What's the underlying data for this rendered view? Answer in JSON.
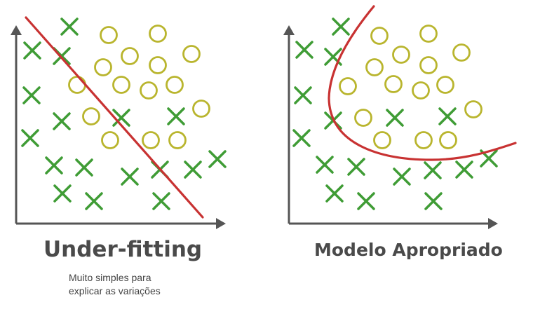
{
  "panels": [
    {
      "title": "Under-fitting",
      "subtitle_lines": [
        "Muito simples para",
        "explicar as variações"
      ]
    },
    {
      "title": "Modelo Apropriado"
    }
  ],
  "colors": {
    "axis": "#555555",
    "cross": "#3f9c35",
    "circle": "#b9b52e",
    "fit_line": "#c83232",
    "title": "#4a4a4a"
  }
}
